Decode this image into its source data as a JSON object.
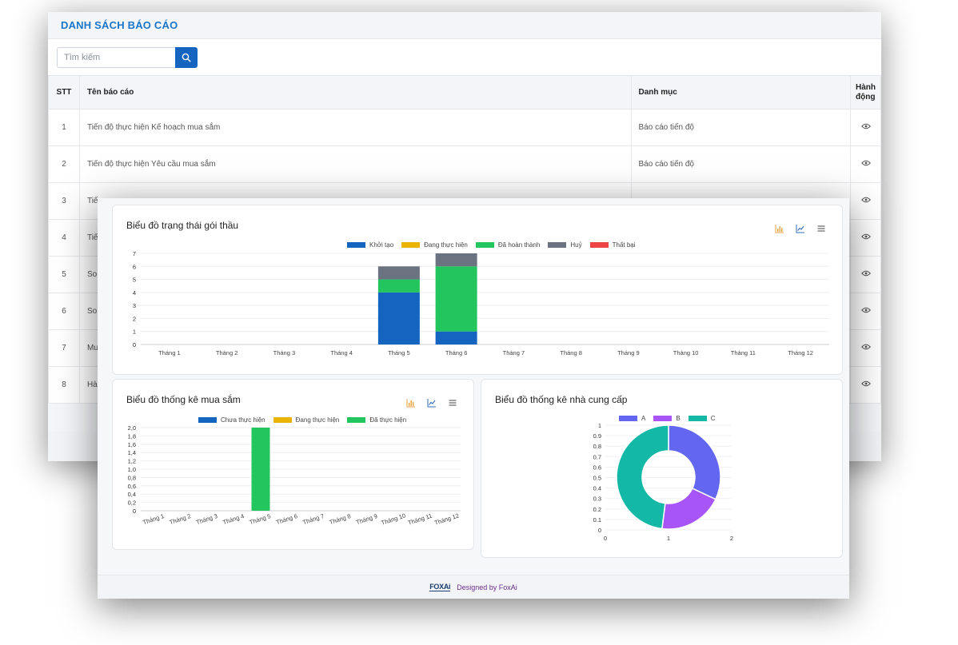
{
  "report_list": {
    "title": "DANH SÁCH BÁO CÁO",
    "search_placeholder": "Tìm kiếm",
    "columns": [
      "STT",
      "Tên báo cáo",
      "Danh mục",
      "Hành động"
    ],
    "rows": [
      {
        "stt": "1",
        "name": "Tiến độ thực hiện Kế hoạch mua sắm",
        "category": "Báo cáo tiến độ"
      },
      {
        "stt": "2",
        "name": "Tiến độ thực hiện Yêu cầu mua sắm",
        "category": "Báo cáo tiến độ"
      },
      {
        "stt": "3",
        "name": "Tiế",
        "category": ""
      },
      {
        "stt": "4",
        "name": "Tiế",
        "category": ""
      },
      {
        "stt": "5",
        "name": "So",
        "category": ""
      },
      {
        "stt": "6",
        "name": "So",
        "category": ""
      },
      {
        "stt": "7",
        "name": "Mu",
        "category": ""
      },
      {
        "stt": "8",
        "name": "Hà",
        "category": ""
      }
    ],
    "action_icon": "eye-icon"
  },
  "dashboard": {
    "footer_logo": "FOXAi",
    "footer_text": "Designed by FoxAi",
    "toolbar_icons": [
      "bar-chart-icon",
      "line-chart-icon",
      "menu-icon"
    ]
  },
  "chart_data": [
    {
      "type": "bar",
      "stacked": true,
      "title": "Biểu đồ trạng thái gói thầu",
      "categories": [
        "Tháng 1",
        "Tháng 2",
        "Tháng 3",
        "Tháng 4",
        "Tháng 5",
        "Tháng 6",
        "Tháng 7",
        "Tháng 8",
        "Tháng 9",
        "Tháng 10",
        "Tháng 11",
        "Tháng 12"
      ],
      "series": [
        {
          "name": "Khởi tạo",
          "color": "#1565c0",
          "values": [
            0,
            0,
            0,
            0,
            4,
            1,
            0,
            0,
            0,
            0,
            0,
            0
          ]
        },
        {
          "name": "Đang thực hiện",
          "color": "#eab308",
          "values": [
            0,
            0,
            0,
            0,
            0,
            0,
            0,
            0,
            0,
            0,
            0,
            0
          ]
        },
        {
          "name": "Đã hoàn thành",
          "color": "#22c55e",
          "values": [
            0,
            0,
            0,
            0,
            1,
            5,
            0,
            0,
            0,
            0,
            0,
            0
          ]
        },
        {
          "name": "Huỷ",
          "color": "#6b7280",
          "values": [
            0,
            0,
            0,
            0,
            1,
            1,
            0,
            0,
            0,
            0,
            0,
            0
          ]
        },
        {
          "name": "Thất bại",
          "color": "#ef4444",
          "values": [
            0,
            0,
            0,
            0,
            0,
            0,
            0,
            0,
            0,
            0,
            0,
            0
          ]
        }
      ],
      "ylim": [
        0,
        7
      ],
      "yticks": [
        "0",
        "1",
        "2",
        "3",
        "4",
        "5",
        "6",
        "7"
      ],
      "grid": true,
      "legend": "top-center"
    },
    {
      "type": "bar",
      "stacked": true,
      "title": "Biểu đồ thống kê mua sắm",
      "categories": [
        "Tháng 1",
        "Tháng 2",
        "Tháng 3",
        "Tháng 4",
        "Tháng 5",
        "Tháng 6",
        "Tháng 7",
        "Tháng 8",
        "Tháng 9",
        "Tháng 10",
        "Tháng 11",
        "Tháng 12"
      ],
      "series": [
        {
          "name": "Chưa thực hiện",
          "color": "#1565c0",
          "values": [
            0,
            0,
            0,
            0,
            0,
            0,
            0,
            0,
            0,
            0,
            0,
            0
          ]
        },
        {
          "name": "Đang thực hiện",
          "color": "#eab308",
          "values": [
            0,
            0,
            0,
            0,
            0,
            0,
            0,
            0,
            0,
            0,
            0,
            0
          ]
        },
        {
          "name": "Đã thực hiện",
          "color": "#22c55e",
          "values": [
            0,
            0,
            0,
            0,
            2,
            0,
            0,
            0,
            0,
            0,
            0,
            0
          ]
        }
      ],
      "ylim": [
        0,
        2
      ],
      "yticks": [
        "0",
        "0,2",
        "0,4",
        "0,6",
        "0,8",
        "1,0",
        "1,2",
        "1,4",
        "1,6",
        "1,8",
        "2,0"
      ],
      "grid": true,
      "legend": "top-center"
    },
    {
      "type": "pie",
      "donut": true,
      "title": "Biểu đồ thống kê nhà cung cấp",
      "labels": [
        "A",
        "B",
        "C"
      ],
      "colors": [
        "#6366f1",
        "#a855f7",
        "#14b8a6"
      ],
      "values": [
        0.32,
        0.2,
        0.48
      ],
      "yticks": [
        "0",
        "0.1",
        "0.2",
        "0.3",
        "0.4",
        "0.5",
        "0.6",
        "0.7",
        "0.8",
        "0.9",
        "1"
      ],
      "xticks": [
        "0",
        "1",
        "2"
      ],
      "legend": "top-center"
    }
  ]
}
